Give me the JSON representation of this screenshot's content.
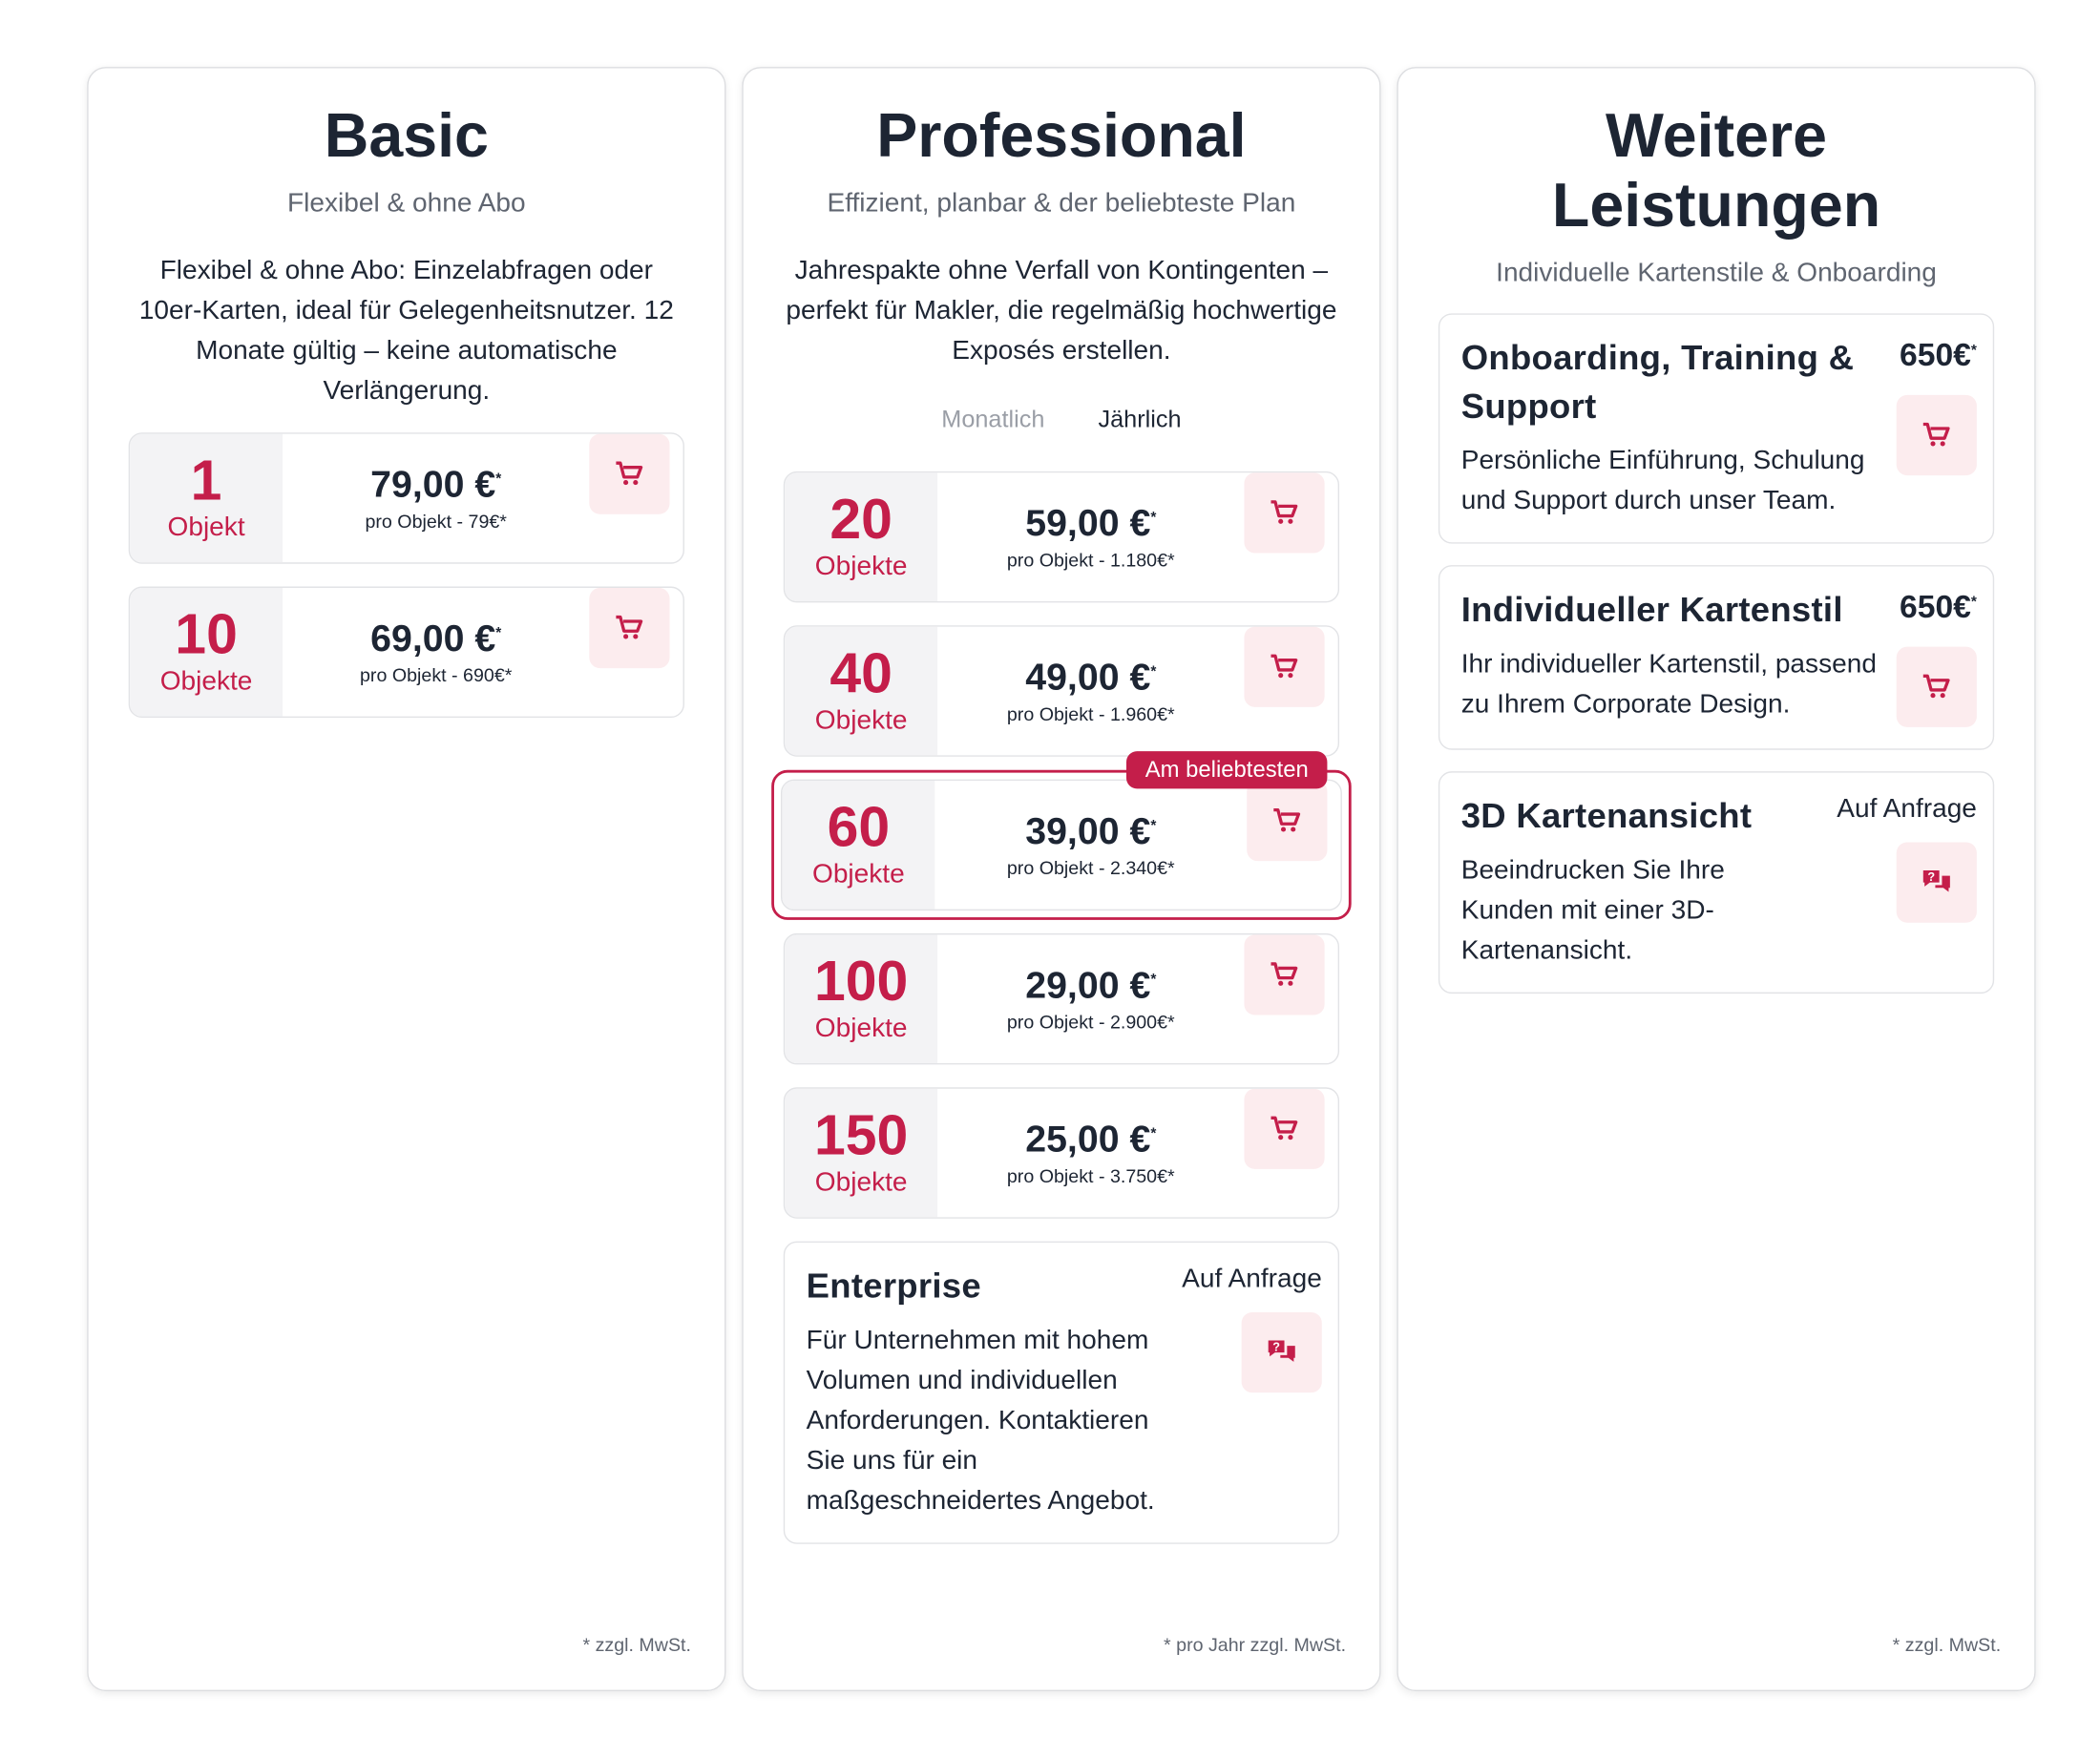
{
  "plans": [
    {
      "title": "Basic",
      "subtitle": "Flexibel & ohne Abo",
      "description": "Flexibel & ohne Abo: Einzelabfragen oder 10er-Karten, ideal für Gelegenheitsnutzer. 12 Monate gültig – keine automatische Verlängerung.",
      "packages": [
        {
          "quantity": "1",
          "unit": "Objekt",
          "price": "79,00 €",
          "price_note": "*",
          "detail": "pro Objekt - 79€*"
        },
        {
          "quantity": "10",
          "unit": "Objekte",
          "price": "69,00 €",
          "price_note": "*",
          "detail": "pro Objekt - 690€*"
        }
      ],
      "footnote": "* zzgl. MwSt."
    },
    {
      "title": "Professional",
      "subtitle": "Effizient, planbar & der beliebteste Plan",
      "description": "Jahrespakte ohne Verfall von Kontingenten – perfekt für Makler, die regelmäßig hochwertige Exposés erstellen.",
      "toggle": [
        "Monatlich",
        "Jährlich"
      ],
      "packages": [
        {
          "quantity": "20",
          "unit": "Objekte",
          "price": "59,00 €",
          "price_note": "*",
          "detail": "pro Objekt - 1.180€*"
        },
        {
          "quantity": "40",
          "unit": "Objekte",
          "price": "49,00 €",
          "price_note": "*",
          "detail": "pro Objekt - 1.960€*"
        },
        {
          "quantity": "60",
          "unit": "Objekte",
          "price": "39,00 €",
          "price_note": "*",
          "detail": "pro Objekt - 2.340€*",
          "badge": "Am beliebtesten"
        },
        {
          "quantity": "100",
          "unit": "Objekte",
          "price": "29,00 €",
          "price_note": "*",
          "detail": "pro Objekt - 2.900€*"
        },
        {
          "quantity": "150",
          "unit": "Objekte",
          "price": "25,00 €",
          "price_note": "*",
          "detail": "pro Objekt - 3.750€*"
        }
      ],
      "services": [
        {
          "title": "Enterprise",
          "price": "Auf Anfrage",
          "description": "Für Unternehmen mit hohem Volumen und individuellen Anforderungen. Kontaktieren Sie uns für ein maßgeschneidertes Angebot."
        }
      ],
      "footnote": "* pro Jahr zzgl. MwSt."
    },
    {
      "title": "Weitere Leistungen",
      "subtitle": "Individuelle Kartenstile & Onboarding",
      "services": [
        {
          "title": "Onboarding, Training & Support",
          "price": "650€",
          "price_note": "*",
          "description": "Persönliche Einführung, Schulung und Support durch unser Team."
        },
        {
          "title": "Individueller Kartenstil",
          "price": "650€",
          "price_note": "*",
          "description": "Ihr individueller Kartenstil, passend zu Ihrem Corporate Design."
        },
        {
          "title": "3D Kartenansicht",
          "price": "Auf Anfrage",
          "description": "Beeindrucken Sie Ihre Kunden mit einer 3D-Kartenansicht."
        }
      ],
      "footnote": "* zzgl. MwSt."
    }
  ]
}
